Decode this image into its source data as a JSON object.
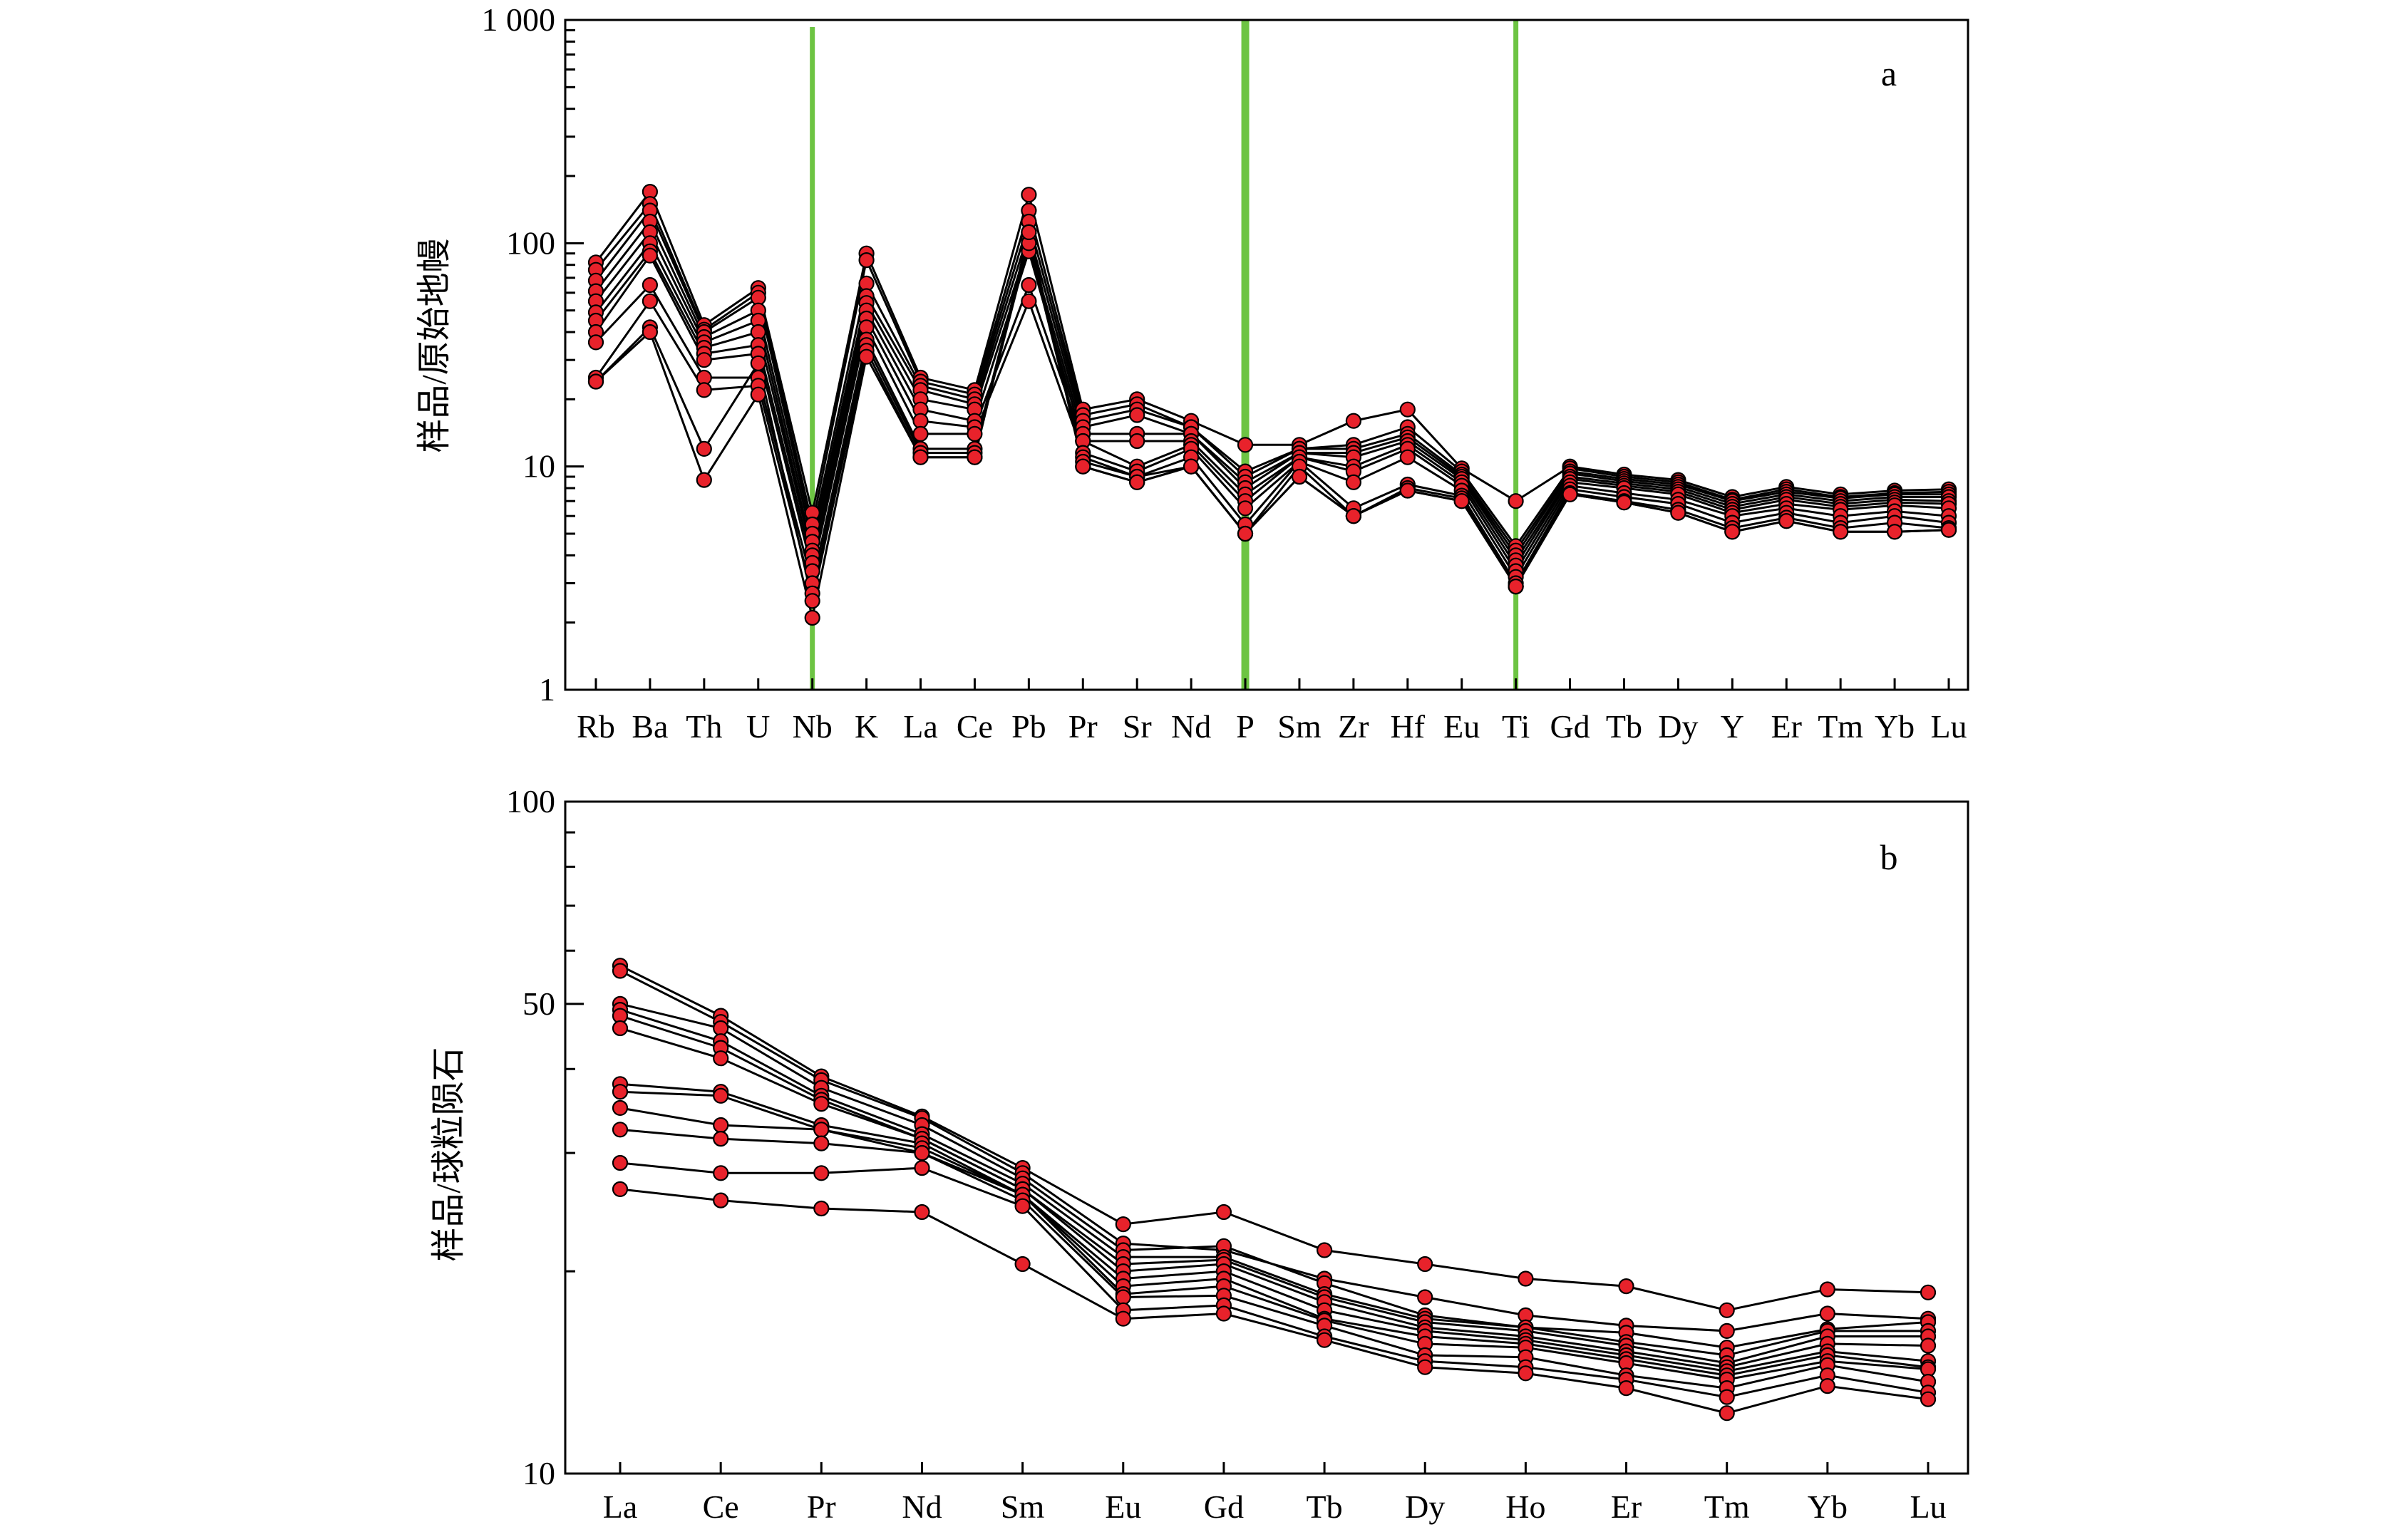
{
  "chart_data": [
    {
      "type": "line",
      "panel_label": "a",
      "ylabel": "样品/原始地幔",
      "xlabel": "",
      "yscale": "log",
      "ylim": [
        1,
        1000
      ],
      "yticks": [
        1,
        10,
        100,
        1000
      ],
      "ytick_labels": [
        "1",
        "10",
        "100",
        "1 000"
      ],
      "categories": [
        "Rb",
        "Ba",
        "Th",
        "U",
        "Nb",
        "K",
        "La",
        "Ce",
        "Pb",
        "Pr",
        "Sr",
        "Nd",
        "P",
        "Sm",
        "Zr",
        "Hf",
        "Eu",
        "Ti",
        "Gd",
        "Tb",
        "Dy",
        "Y",
        "Er",
        "Tm",
        "Yb",
        "Lu"
      ],
      "highlight_categories": [
        "Nb",
        "P",
        "Ti"
      ],
      "highlight_color": "#6dc443",
      "marker_color": "#e8222b",
      "line_color": "#000000",
      "grid": false,
      "series": [
        {
          "values": [
            82,
            170,
            43,
            63,
            6.2,
            90,
            25,
            22,
            165,
            18,
            20,
            16,
            12.5,
            12.5,
            16,
            18,
            9.8,
            7.0,
            10,
            9.2,
            8.7,
            7.3,
            8.1,
            7.5,
            7.8,
            7.9
          ]
        },
        {
          "values": [
            76,
            150,
            41,
            60,
            5.5,
            84,
            24,
            21,
            140,
            17,
            19,
            15,
            9.5,
            12,
            12.5,
            15,
            9.5,
            4.4,
            9.8,
            9.0,
            8.5,
            7.1,
            7.9,
            7.3,
            7.6,
            7.7
          ]
        },
        {
          "values": [
            68,
            140,
            40,
            57,
            5.0,
            66,
            23,
            20,
            125,
            16,
            18,
            15,
            9.0,
            12,
            12,
            14,
            9.2,
            4.2,
            9.5,
            8.8,
            8.3,
            7.0,
            7.7,
            7.2,
            7.5,
            7.5
          ]
        },
        {
          "values": [
            61,
            125,
            38,
            50,
            4.6,
            58,
            22,
            19,
            112,
            15,
            17,
            14,
            8.5,
            11.5,
            11.5,
            13.5,
            9.0,
            4.0,
            9.3,
            8.6,
            8.1,
            6.8,
            7.5,
            7.0,
            7.3,
            7.3
          ]
        },
        {
          "values": [
            55,
            112,
            36,
            45,
            4.2,
            54,
            20,
            18,
            100,
            14,
            14,
            14,
            8.0,
            11.5,
            11,
            13,
            8.8,
            3.8,
            9.0,
            8.4,
            7.9,
            6.6,
            7.3,
            6.8,
            7.1,
            7.0
          ]
        },
        {
          "values": [
            49,
            100,
            34,
            40,
            4.0,
            50,
            18,
            16,
            92,
            13,
            13,
            13,
            7.5,
            11,
            10,
            12.5,
            8.5,
            3.6,
            8.8,
            8.2,
            7.7,
            6.4,
            7.1,
            6.6,
            6.9,
            6.8
          ]
        },
        {
          "values": [
            45,
            92,
            32,
            35,
            3.7,
            46,
            16,
            15,
            65,
            13,
            10,
            12.5,
            7.0,
            11,
            9.5,
            12,
            8.2,
            3.4,
            8.5,
            8.0,
            7.5,
            6.2,
            6.8,
            6.4,
            6.7,
            6.5
          ]
        },
        {
          "values": [
            40,
            88,
            30,
            32,
            3.4,
            42,
            14,
            14,
            55,
            11.5,
            9.5,
            12,
            6.5,
            10.5,
            8.5,
            11,
            7.8,
            3.2,
            8.2,
            7.6,
            7.1,
            6.0,
            6.5,
            6.0,
            6.3,
            6.0
          ]
        },
        {
          "values": [
            36,
            65,
            25,
            25,
            3.0,
            37,
            12,
            12,
            105,
            11,
            9.0,
            11,
            5.5,
            10.5,
            6.5,
            8.3,
            7.4,
            3.0,
            7.9,
            7.3,
            6.8,
            5.6,
            6.2,
            5.6,
            6.0,
            5.6
          ]
        },
        {
          "values": [
            25,
            55,
            22,
            23,
            2.7,
            35,
            11.5,
            11.5,
            100,
            10.5,
            9.0,
            10,
            5.0,
            10,
            6.0,
            8.0,
            7.2,
            2.9,
            7.6,
            7.0,
            6.4,
            5.3,
            5.9,
            5.3,
            5.6,
            5.3
          ]
        },
        {
          "values": [
            24,
            42,
            12,
            29,
            2.5,
            33,
            11,
            11,
            112,
            10,
            8.5,
            10,
            5.0,
            9.0,
            6.0,
            7.8,
            7.0,
            2.9,
            7.5,
            6.9,
            6.2,
            5.1,
            5.7,
            5.1,
            5.1,
            5.2
          ]
        },
        {
          "values": [
            24,
            40,
            8.7,
            21,
            2.1,
            31,
            11,
            11,
            112,
            10,
            8.5,
            10,
            5.0,
            9.0,
            6.0,
            7.8,
            7.0,
            2.9,
            7.5,
            6.9,
            6.2,
            5.1,
            5.7,
            5.1,
            5.1,
            5.2
          ]
        }
      ]
    },
    {
      "type": "line",
      "panel_label": "b",
      "ylabel": "样品/球粒陨石",
      "xlabel": "",
      "yscale": "log",
      "ylim": [
        10,
        100
      ],
      "yticks": [
        10,
        50,
        100
      ],
      "ytick_labels": [
        "10",
        "50",
        "100"
      ],
      "categories": [
        "La",
        "Ce",
        "Pr",
        "Nd",
        "Sm",
        "Eu",
        "Gd",
        "Tb",
        "Dy",
        "Ho",
        "Er",
        "Tm",
        "Yb",
        "Lu"
      ],
      "marker_color": "#e8222b",
      "line_color": "#000000",
      "grid": false,
      "series": [
        {
          "values": [
            57,
            48,
            39,
            34,
            28.5,
            23.5,
            24.5,
            21.5,
            20.5,
            19.5,
            19,
            17.5,
            18.8,
            18.6
          ]
        },
        {
          "values": [
            56,
            47,
            38.5,
            33.8,
            28.0,
            22.0,
            21.5,
            19.5,
            18.3,
            17.2,
            16.6,
            16.3,
            17.3,
            17.0
          ]
        },
        {
          "values": [
            50,
            46,
            37.5,
            33,
            27.5,
            21.5,
            21.8,
            19.2,
            17.2,
            16.5,
            16.2,
            15.4,
            16.4,
            16.8
          ]
        },
        {
          "values": [
            49,
            44,
            36.5,
            32,
            27.0,
            21,
            21,
            18.5,
            17.0,
            16.5,
            15.7,
            15.0,
            16.3,
            16.3
          ]
        },
        {
          "values": [
            48,
            43,
            36,
            31.5,
            26.5,
            20.5,
            20.8,
            18.3,
            16.8,
            16.3,
            15.5,
            14.6,
            16.0,
            16.0
          ]
        },
        {
          "values": [
            46,
            41.5,
            35.5,
            31.5,
            26.5,
            20.0,
            20.5,
            18.0,
            16.5,
            16.0,
            15.2,
            14.4,
            15.6,
            15.5
          ]
        },
        {
          "values": [
            38,
            37,
            33,
            31,
            26.0,
            19.5,
            20.0,
            17.5,
            16.3,
            15.8,
            15.0,
            14.2,
            15.2,
            14.7
          ]
        },
        {
          "values": [
            37,
            36.5,
            32.5,
            30.5,
            26.0,
            19.0,
            19.5,
            17.0,
            16.0,
            15.6,
            14.8,
            14.0,
            15.0,
            14.4
          ]
        },
        {
          "values": [
            35,
            33,
            32.5,
            30.0,
            26.0,
            18.5,
            19.0,
            16.9,
            15.6,
            15.4,
            14.6,
            13.8,
            14.7,
            14.3
          ]
        },
        {
          "values": [
            32.5,
            31.5,
            31,
            30.0,
            25.5,
            18.3,
            18.4,
            16.6,
            15.0,
            14.9,
            14.0,
            13.4,
            14.5,
            13.7
          ]
        },
        {
          "values": [
            29,
            28,
            28,
            28.5,
            25.0,
            17.5,
            17.8,
            16.0,
            14.7,
            14.4,
            13.8,
            13.0,
            14.0,
            13.2
          ]
        },
        {
          "values": [
            26.5,
            25.5,
            24.8,
            24.5,
            20.5,
            17.0,
            17.3,
            15.8,
            14.4,
            14.1,
            13.4,
            12.3,
            13.5,
            12.9
          ]
        }
      ]
    }
  ]
}
